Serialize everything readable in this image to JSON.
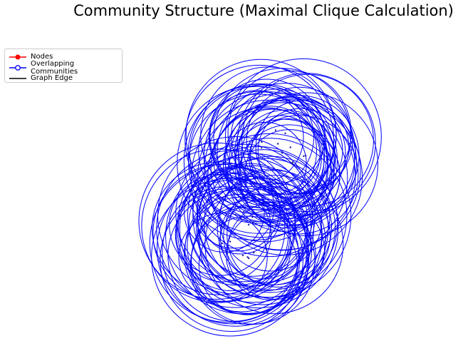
{
  "title": "Community Structure (Maximal Clique Calculation)",
  "legend": {
    "items": [
      {
        "label": "Nodes",
        "color": "#ff0000",
        "marker": "filled-circle"
      },
      {
        "label": "Overlapping Communities",
        "color": "#0000ff",
        "marker": "open-circle"
      },
      {
        "label": "Graph Edge",
        "color": "#000000",
        "marker": "line"
      }
    ]
  },
  "colors": {
    "community": "#0000ff",
    "node": "#ff0000",
    "node_drawn": "#1a1aa0",
    "edge": "#000000"
  },
  "graph": {
    "community_count": 95,
    "cluster_count": 2
  }
}
